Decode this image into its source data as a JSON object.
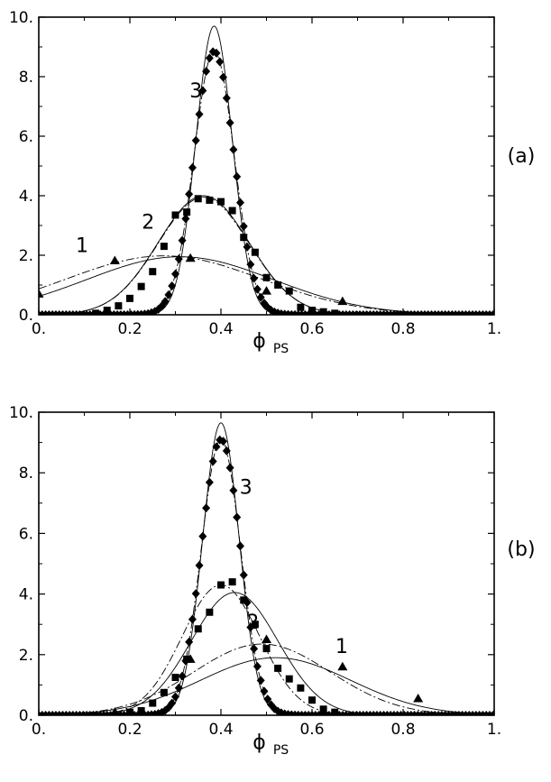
{
  "chart_data": [
    {
      "type": "line",
      "panel_label": "(a)",
      "xlabel_main": "ϕ",
      "xlabel_sub": "PS",
      "ylabel": "",
      "xlim": [
        0,
        1
      ],
      "ylim": [
        0,
        10
      ],
      "xticks": [
        "0.",
        "0.2",
        "0.4",
        "0.6",
        "0.8",
        "1."
      ],
      "yticks": [
        "0.",
        "2.",
        "4.",
        "6.",
        "8.",
        "10."
      ],
      "xtick_values": [
        0,
        0.2,
        0.4,
        0.6,
        0.8,
        1.0
      ],
      "ytick_values": [
        0,
        2,
        4,
        6,
        8,
        10
      ],
      "grid": false,
      "series": [
        {
          "label": "1",
          "label_pos": [
            0.095,
            2.1
          ],
          "marker": "triangle",
          "solid": {
            "mean": 0.31,
            "sigma": 0.205,
            "peak": 1.95
          },
          "dashed": {
            "mean": 0.275,
            "sigma": 0.215,
            "peak": 1.98
          },
          "points": [
            [
              0.0,
              0.7
            ],
            [
              0.167,
              1.82
            ],
            [
              0.333,
              1.9
            ],
            [
              0.5,
              0.8
            ],
            [
              0.667,
              0.45
            ]
          ]
        },
        {
          "label": "2",
          "label_pos": [
            0.24,
            2.9
          ],
          "marker": "square",
          "solid": {
            "mean": 0.362,
            "sigma": 0.1,
            "peak": 4.0
          },
          "dashed": {
            "mean": 0.362,
            "sigma": 0.1,
            "peak": 3.95
          },
          "points": [
            [
              0.125,
              0.05
            ],
            [
              0.15,
              0.15
            ],
            [
              0.175,
              0.3
            ],
            [
              0.2,
              0.55
            ],
            [
              0.225,
              0.95
            ],
            [
              0.25,
              1.45
            ],
            [
              0.275,
              2.3
            ],
            [
              0.3,
              3.35
            ],
            [
              0.325,
              3.45
            ],
            [
              0.35,
              3.9
            ],
            [
              0.375,
              3.85
            ],
            [
              0.4,
              3.8
            ],
            [
              0.425,
              3.5
            ],
            [
              0.45,
              2.6
            ],
            [
              0.475,
              2.1
            ],
            [
              0.5,
              1.25
            ],
            [
              0.525,
              1.0
            ],
            [
              0.55,
              0.8
            ],
            [
              0.575,
              0.25
            ],
            [
              0.6,
              0.15
            ],
            [
              0.625,
              0.1
            ],
            [
              0.65,
              0.05
            ]
          ]
        },
        {
          "label": "3",
          "label_pos": [
            0.345,
            7.3
          ],
          "marker": "diamond",
          "solid": {
            "mean": 0.385,
            "sigma": 0.04,
            "peak": 9.7
          },
          "dashed": {
            "mean": 0.385,
            "sigma": 0.044,
            "peak": 8.85
          },
          "points": "gaussian",
          "gauss": {
            "mean": 0.385,
            "sigma": 0.044,
            "peak": 8.85
          }
        }
      ]
    },
    {
      "type": "line",
      "panel_label": "(b)",
      "xlabel_main": "ϕ",
      "xlabel_sub": "PS",
      "ylabel": "",
      "xlim": [
        0,
        1
      ],
      "ylim": [
        0,
        10
      ],
      "xticks": [
        "0.",
        "0.2",
        "0.4",
        "0.6",
        "0.8",
        "1."
      ],
      "yticks": [
        "0.",
        "2.",
        "4.",
        "6.",
        "8.",
        "10."
      ],
      "xtick_values": [
        0,
        0.2,
        0.4,
        0.6,
        0.8,
        1.0
      ],
      "ytick_values": [
        0,
        2,
        4,
        6,
        8,
        10
      ],
      "grid": false,
      "series": [
        {
          "label": "1",
          "label_pos": [
            0.665,
            2.05
          ],
          "marker": "triangle",
          "solid": {
            "mean": 0.52,
            "sigma": 0.165,
            "peak": 1.9
          },
          "dashed": {
            "mean": 0.49,
            "sigma": 0.15,
            "peak": 2.35
          },
          "points": [
            [
              0.167,
              0.1
            ],
            [
              0.333,
              1.85
            ],
            [
              0.5,
              2.5
            ],
            [
              0.667,
              1.6
            ],
            [
              0.833,
              0.55
            ]
          ]
        },
        {
          "label": "2",
          "label_pos": [
            0.47,
            2.85
          ],
          "marker": "square",
          "solid": {
            "mean": 0.43,
            "sigma": 0.095,
            "peak": 4.05
          },
          "dashed": {
            "mean": 0.4,
            "sigma": 0.085,
            "peak": 4.3
          },
          "points": [
            [
              0.2,
              0.1
            ],
            [
              0.225,
              0.15
            ],
            [
              0.25,
              0.4
            ],
            [
              0.275,
              0.75
            ],
            [
              0.3,
              1.25
            ],
            [
              0.325,
              1.85
            ],
            [
              0.35,
              2.85
            ],
            [
              0.375,
              3.4
            ],
            [
              0.4,
              4.3
            ],
            [
              0.425,
              4.4
            ],
            [
              0.45,
              3.8
            ],
            [
              0.475,
              3.0
            ],
            [
              0.5,
              2.2
            ],
            [
              0.525,
              1.55
            ],
            [
              0.55,
              1.2
            ],
            [
              0.575,
              0.9
            ],
            [
              0.6,
              0.5
            ],
            [
              0.625,
              0.2
            ],
            [
              0.65,
              0.1
            ]
          ]
        },
        {
          "label": "3",
          "label_pos": [
            0.455,
            7.3
          ],
          "marker": "diamond",
          "solid": {
            "mean": 0.4,
            "sigma": 0.04,
            "peak": 9.65
          },
          "dashed": {
            "mean": 0.4,
            "sigma": 0.043,
            "peak": 9.1
          },
          "points": "gaussian",
          "gauss": {
            "mean": 0.4,
            "sigma": 0.043,
            "peak": 9.1
          }
        }
      ]
    }
  ]
}
